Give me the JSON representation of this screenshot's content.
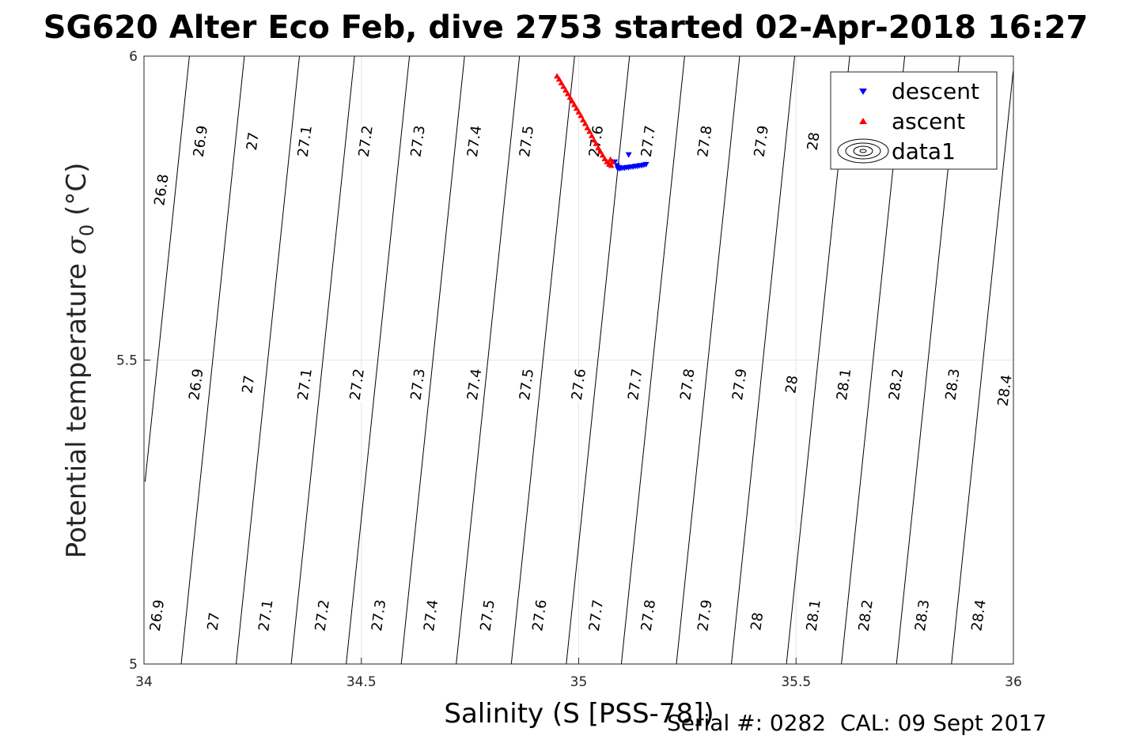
{
  "title": "SG620 Alter Eco Feb, dive 2753 started 02-Apr-2018 16:27",
  "footer": "Serial #: 0282  CAL: 09 Sept 2017",
  "chart_data": {
    "type": "scatter",
    "title": "SG620 Alter Eco Feb, dive 2753 started 02-Apr-2018 16:27",
    "xlabel": "Salinity (S [PSS-78])",
    "ylabel_main": "Potential temperature ",
    "ylabel_sym": "σ",
    "ylabel_sub": "0",
    "ylabel_unit": " (°C)",
    "xlim": [
      34,
      36
    ],
    "ylim": [
      5,
      6
    ],
    "xticks": [
      "34",
      "34.5",
      "35",
      "35.5",
      "36"
    ],
    "yticks": [
      "5",
      "5.5",
      "6"
    ],
    "grid": true,
    "legend_position": "top-right",
    "legend": [
      {
        "name": "descent",
        "marker": "triangle-down",
        "color": "#0000ff"
      },
      {
        "name": "ascent",
        "marker": "triangle-up",
        "color": "#ff0000"
      },
      {
        "name": "data1",
        "marker": "contour",
        "color": "#000000"
      }
    ],
    "contours": {
      "name": "data1",
      "levels": [
        26.8,
        26.9,
        27.0,
        27.1,
        27.2,
        27.3,
        27.4,
        27.5,
        27.6,
        27.7,
        27.8,
        27.9,
        28.0,
        28.1,
        28.2,
        28.3,
        28.4
      ],
      "color": "#000000"
    },
    "contour_labels": [
      {
        "text": "26.8",
        "s": 34.04,
        "t": 5.78
      },
      {
        "text": "26.9",
        "s": 34.13,
        "t": 5.86
      },
      {
        "text": "27",
        "s": 34.25,
        "t": 5.86
      },
      {
        "text": "27.1",
        "s": 34.37,
        "t": 5.86
      },
      {
        "text": "27.2",
        "s": 34.51,
        "t": 5.86
      },
      {
        "text": "27.3",
        "s": 34.63,
        "t": 5.86
      },
      {
        "text": "27.4",
        "s": 34.76,
        "t": 5.86
      },
      {
        "text": "27.5",
        "s": 34.88,
        "t": 5.86
      },
      {
        "text": "27.6",
        "s": 35.04,
        "t": 5.86
      },
      {
        "text": "27.7",
        "s": 35.16,
        "t": 5.86
      },
      {
        "text": "27.8",
        "s": 35.29,
        "t": 5.86
      },
      {
        "text": "27.9",
        "s": 35.42,
        "t": 5.86
      },
      {
        "text": "28",
        "s": 35.54,
        "t": 5.86
      },
      {
        "text": "26.9",
        "s": 34.12,
        "t": 5.46
      },
      {
        "text": "27",
        "s": 34.24,
        "t": 5.46
      },
      {
        "text": "27.1",
        "s": 34.37,
        "t": 5.46
      },
      {
        "text": "27.2",
        "s": 34.49,
        "t": 5.46
      },
      {
        "text": "27.3",
        "s": 34.63,
        "t": 5.46
      },
      {
        "text": "27.4",
        "s": 34.76,
        "t": 5.46
      },
      {
        "text": "27.5",
        "s": 34.88,
        "t": 5.46
      },
      {
        "text": "27.6",
        "s": 35.0,
        "t": 5.46
      },
      {
        "text": "27.7",
        "s": 35.13,
        "t": 5.46
      },
      {
        "text": "27.8",
        "s": 35.25,
        "t": 5.46
      },
      {
        "text": "27.9",
        "s": 35.37,
        "t": 5.46
      },
      {
        "text": "28",
        "s": 35.49,
        "t": 5.46
      },
      {
        "text": "28.1",
        "s": 35.61,
        "t": 5.46
      },
      {
        "text": "28.2",
        "s": 35.73,
        "t": 5.46
      },
      {
        "text": "28.3",
        "s": 35.86,
        "t": 5.46
      },
      {
        "text": "28.4",
        "s": 35.98,
        "t": 5.45
      },
      {
        "text": "26.9",
        "s": 34.03,
        "t": 5.08
      },
      {
        "text": "27",
        "s": 34.16,
        "t": 5.07
      },
      {
        "text": "27.1",
        "s": 34.28,
        "t": 5.08
      },
      {
        "text": "27.2",
        "s": 34.41,
        "t": 5.08
      },
      {
        "text": "27.3",
        "s": 34.54,
        "t": 5.08
      },
      {
        "text": "27.4",
        "s": 34.66,
        "t": 5.08
      },
      {
        "text": "27.5",
        "s": 34.79,
        "t": 5.08
      },
      {
        "text": "27.6",
        "s": 34.91,
        "t": 5.08
      },
      {
        "text": "27.7",
        "s": 35.04,
        "t": 5.08
      },
      {
        "text": "27.8",
        "s": 35.16,
        "t": 5.08
      },
      {
        "text": "27.9",
        "s": 35.29,
        "t": 5.08
      },
      {
        "text": "28",
        "s": 35.41,
        "t": 5.07
      },
      {
        "text": "28.1",
        "s": 35.54,
        "t": 5.08
      },
      {
        "text": "28.2",
        "s": 35.66,
        "t": 5.08
      },
      {
        "text": "28.3",
        "s": 35.79,
        "t": 5.08
      },
      {
        "text": "28.4",
        "s": 35.92,
        "t": 5.08
      }
    ],
    "series": [
      {
        "name": "descent",
        "marker": "triangle-down",
        "color": "#0000ff",
        "points": [
          [
            35.115,
            5.838
          ],
          [
            35.09,
            5.815
          ],
          [
            35.095,
            5.815
          ],
          [
            35.1,
            5.816
          ],
          [
            35.105,
            5.816
          ],
          [
            35.11,
            5.817
          ],
          [
            35.115,
            5.817
          ],
          [
            35.12,
            5.818
          ],
          [
            35.125,
            5.818
          ],
          [
            35.13,
            5.819
          ],
          [
            35.135,
            5.819
          ],
          [
            35.14,
            5.82
          ],
          [
            35.145,
            5.82
          ],
          [
            35.15,
            5.821
          ],
          [
            35.155,
            5.822
          ],
          [
            35.088,
            5.82
          ],
          [
            35.093,
            5.817
          ],
          [
            35.083,
            5.826
          ]
        ]
      },
      {
        "name": "ascent",
        "marker": "triangle-up",
        "color": "#ff0000",
        "points": [
          [
            34.95,
            5.967
          ],
          [
            34.955,
            5.962
          ],
          [
            34.96,
            5.956
          ],
          [
            34.965,
            5.95
          ],
          [
            34.97,
            5.944
          ],
          [
            34.975,
            5.938
          ],
          [
            34.98,
            5.932
          ],
          [
            34.985,
            5.926
          ],
          [
            34.99,
            5.92
          ],
          [
            34.995,
            5.914
          ],
          [
            35.0,
            5.908
          ],
          [
            35.005,
            5.902
          ],
          [
            35.01,
            5.895
          ],
          [
            35.015,
            5.889
          ],
          [
            35.02,
            5.882
          ],
          [
            35.025,
            5.876
          ],
          [
            35.03,
            5.869
          ],
          [
            35.035,
            5.862
          ],
          [
            35.04,
            5.856
          ],
          [
            35.045,
            5.849
          ],
          [
            35.05,
            5.843
          ],
          [
            35.055,
            5.837
          ],
          [
            35.06,
            5.831
          ],
          [
            35.065,
            5.826
          ],
          [
            35.07,
            5.822
          ],
          [
            35.075,
            5.82
          ],
          [
            35.078,
            5.826
          ],
          [
            35.073,
            5.83
          ]
        ]
      }
    ]
  }
}
